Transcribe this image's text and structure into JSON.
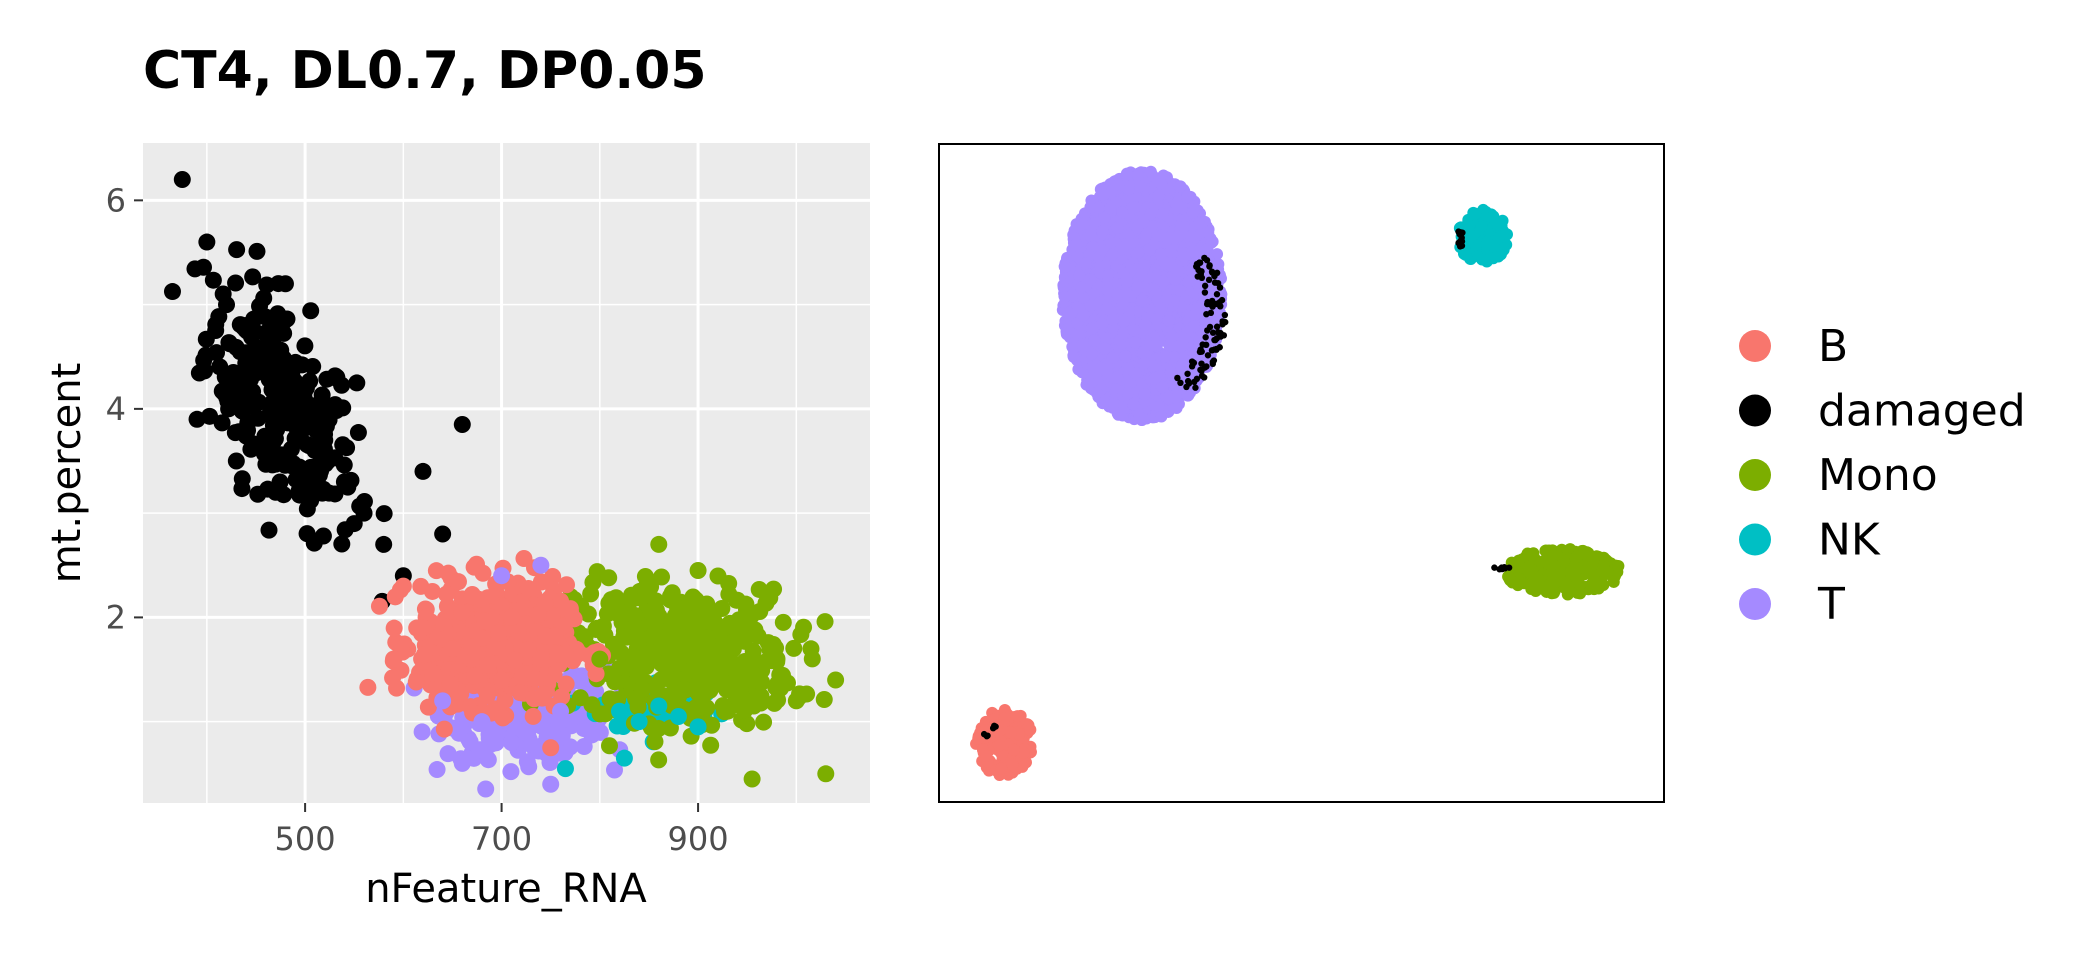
{
  "title": "CT4, DL0.7, DP0.05",
  "colors": {
    "B": "#F8766D",
    "damaged": "#000000",
    "Mono": "#7CAE00",
    "NK": "#00BFC4",
    "T": "#A58AFF"
  },
  "legend": {
    "position": "right",
    "entries": [
      "B",
      "damaged",
      "Mono",
      "NK",
      "T"
    ]
  },
  "chart_data": [
    {
      "type": "scatter",
      "panel": "qc-scatter",
      "xlabel": "nFeature_RNA",
      "ylabel": "mt.percent",
      "xlim": [
        335,
        1075
      ],
      "ylim": [
        0.22,
        6.55
      ],
      "xticks": [
        500,
        700,
        900
      ],
      "yticks": [
        2,
        4,
        6
      ],
      "grid": true,
      "series": [
        {
          "name": "damaged",
          "x": [
            375,
            400,
            420,
            440,
            460,
            480,
            500,
            520,
            540,
            560,
            580,
            600,
            620,
            640,
            660,
            390,
            430,
            470,
            510,
            550,
            455,
            480
          ],
          "y": [
            6.2,
            5.6,
            5.0,
            4.8,
            4.5,
            4.2,
            4.0,
            3.7,
            3.3,
            3.0,
            2.7,
            2.4,
            3.4,
            2.8,
            3.85,
            3.9,
            3.5,
            3.2,
            3.6,
            2.9,
            4.4,
            5.2
          ]
        },
        {
          "name": "B",
          "x": [
            620,
            650,
            680,
            710,
            740,
            700,
            670,
            600,
            590,
            750
          ],
          "y": [
            1.9,
            1.7,
            1.8,
            2.0,
            1.6,
            1.4,
            2.2,
            2.3,
            1.6,
            0.75
          ]
        },
        {
          "name": "T",
          "x": [
            640,
            680,
            720,
            760,
            700,
            740,
            660,
            750,
            710
          ],
          "y": [
            1.2,
            1.0,
            0.9,
            1.1,
            2.4,
            2.5,
            0.6,
            0.4,
            0.8
          ]
        },
        {
          "name": "NK",
          "x": [
            820,
            840,
            860,
            880,
            900,
            765,
            825
          ],
          "y": [
            1.1,
            1.0,
            1.15,
            1.05,
            0.95,
            0.55,
            0.65
          ]
        },
        {
          "name": "Mono",
          "x": [
            800,
            840,
            880,
            920,
            960,
            1000,
            1040,
            860,
            900,
            955,
            1030
          ],
          "y": [
            1.6,
            1.8,
            1.7,
            1.5,
            1.4,
            1.2,
            1.4,
            2.7,
            2.45,
            0.45,
            0.5
          ]
        }
      ]
    },
    {
      "type": "scatter",
      "panel": "embedding",
      "xlabel": "",
      "ylabel": "",
      "axes_ticks": false,
      "grid": false,
      "clusters": [
        {
          "name": "T",
          "center": [
            0.28,
            0.23
          ],
          "rx": 0.11,
          "ry": 0.19
        },
        {
          "name": "NK",
          "center": [
            0.75,
            0.14
          ],
          "rx": 0.035,
          "ry": 0.04
        },
        {
          "name": "Mono",
          "center": [
            0.86,
            0.65
          ],
          "rx": 0.08,
          "ry": 0.035
        },
        {
          "name": "B",
          "center": [
            0.09,
            0.91
          ],
          "rx": 0.04,
          "ry": 0.05
        }
      ]
    }
  ]
}
